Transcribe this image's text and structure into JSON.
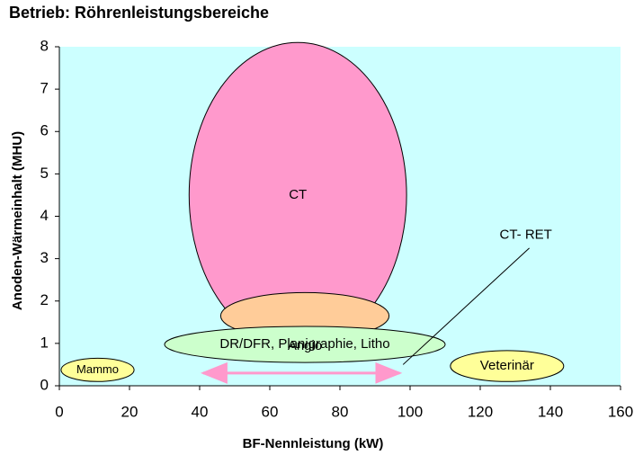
{
  "chart_data": {
    "type": "region",
    "title": "Betrieb: Röhrenleistungsbereiche",
    "xlabel": "BF-Nennleistung (kW)",
    "ylabel": "Anoden-Wärmeinhalt (MHU)",
    "xlim": [
      0,
      160
    ],
    "xticks": [
      0,
      20,
      40,
      60,
      80,
      100,
      120,
      140,
      160
    ],
    "ylim": [
      0,
      8
    ],
    "yticks": [
      0,
      1,
      2,
      3,
      4,
      5,
      6,
      7,
      8
    ],
    "background": "#ccffff",
    "regions": [
      {
        "name": "CT",
        "color": "#ff99cc",
        "x": [
          37,
          99
        ],
        "y": [
          0.9,
          8.1
        ]
      },
      {
        "name": "Angio",
        "color": "#ffcc99",
        "x": [
          46,
          94
        ],
        "y": [
          1.1,
          2.2
        ]
      },
      {
        "name": "DR/DFR, Planigraphie, Litho",
        "color": "#ccffcc",
        "x": [
          30,
          110
        ],
        "y": [
          0.55,
          1.4
        ]
      },
      {
        "name": "Mammo",
        "color": "#ffff99",
        "x": [
          0.5,
          21.3
        ],
        "y": [
          0.1,
          0.65
        ]
      },
      {
        "name": "Veterinär",
        "color": "#ffff99",
        "x": [
          111.5,
          143.8
        ],
        "y": [
          0.1,
          0.83
        ]
      }
    ],
    "arrow": {
      "x": [
        41,
        97
      ],
      "y": 0.3,
      "color": "#ff99cc"
    },
    "annotation": {
      "text": "CT- RET",
      "x": 133,
      "y": 3.55,
      "line": [
        [
          134,
          3.25
        ],
        [
          98,
          0.5
        ]
      ]
    }
  }
}
